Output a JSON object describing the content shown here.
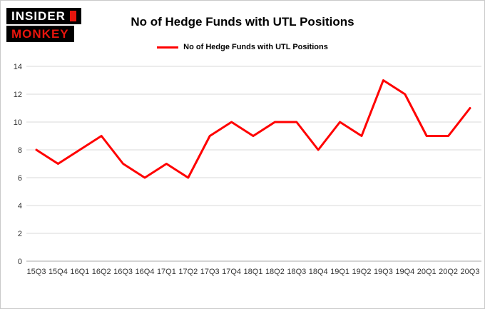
{
  "logo": {
    "line1": "INSIDER",
    "line2": "MONKEY"
  },
  "title": "No of Hedge Funds with UTL Positions",
  "legend": {
    "label": "No of Hedge Funds with UTL Positions",
    "color": "#ff0000"
  },
  "chart_data": {
    "type": "line",
    "title": "No of Hedge Funds with UTL Positions",
    "categories": [
      "15Q3",
      "15Q4",
      "16Q1",
      "16Q2",
      "16Q3",
      "16Q4",
      "17Q1",
      "17Q2",
      "17Q3",
      "17Q4",
      "18Q1",
      "18Q2",
      "18Q3",
      "18Q4",
      "19Q1",
      "19Q2",
      "19Q3",
      "19Q4",
      "20Q1",
      "20Q2",
      "20Q3"
    ],
    "values": [
      8,
      7,
      8,
      9,
      7,
      6,
      7,
      6,
      9,
      10,
      9,
      10,
      10,
      8,
      10,
      9,
      13,
      12,
      9,
      9,
      11
    ],
    "xlabel": "",
    "ylabel": "",
    "ylim": [
      0,
      14
    ],
    "yticks": [
      0,
      2,
      4,
      6,
      8,
      10,
      12,
      14
    ],
    "grid": true,
    "legend_position": "top-center",
    "line_color": "#ff0000",
    "gridline_color": "#d9d9d9",
    "axis_line_color": "#aaaaaa"
  }
}
